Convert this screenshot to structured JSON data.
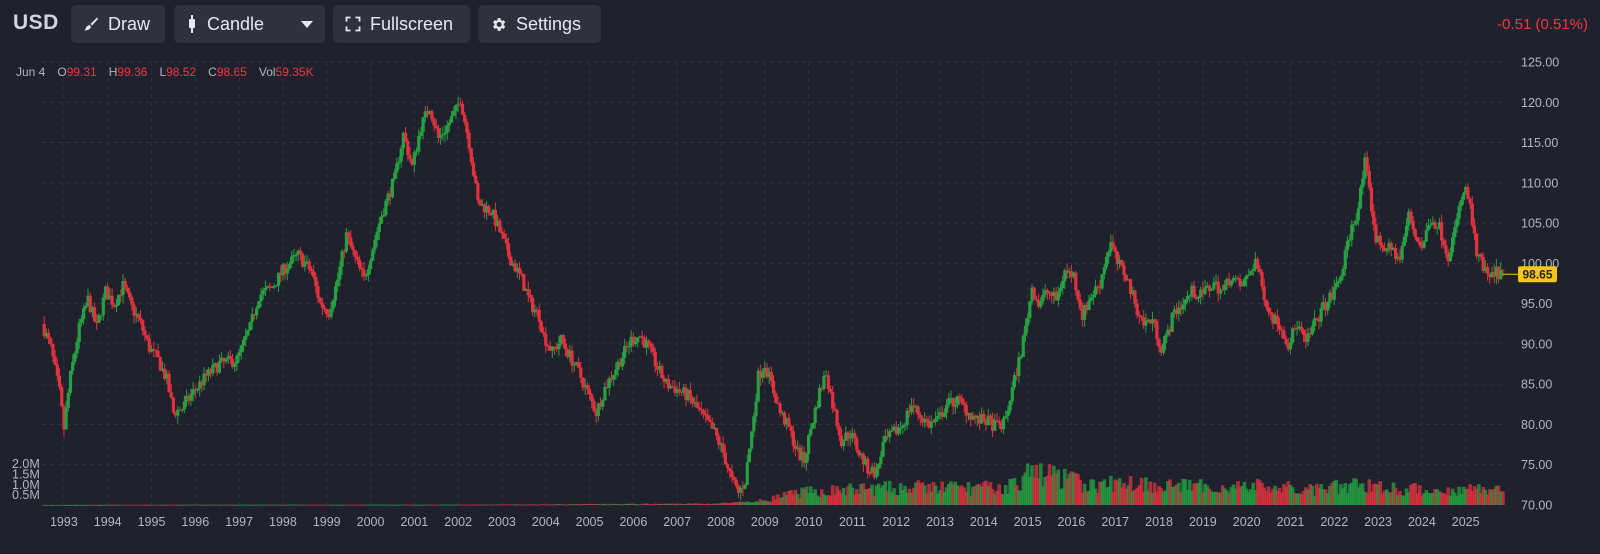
{
  "header": {
    "symbol": "USD",
    "draw_label": "Draw",
    "chart_type_label": "Candle",
    "fullscreen_label": "Fullscreen",
    "settings_label": "Settings",
    "change_text": "-0.51 (0.51%)"
  },
  "legend": {
    "date": "Jun 4",
    "open_key": "O",
    "open": "99.31",
    "high_key": "H",
    "high": "99.36",
    "low_key": "L",
    "low": "98.52",
    "close_key": "C",
    "close": "98.65",
    "vol_key": "Vol",
    "vol": "59.35K"
  },
  "colors": {
    "background": "#1f222c",
    "up": "#26a042",
    "down": "#e0323f",
    "grid": "#2e3240",
    "price_tag": "#f5c518",
    "text": "#b2b5be"
  },
  "chart_data": {
    "type": "candlestick",
    "title": "USD",
    "price_axis": {
      "ticks": [
        70,
        75,
        80,
        85,
        90,
        95,
        100,
        105,
        110,
        115,
        120,
        125
      ],
      "tick_labels": [
        "70.00",
        "75.00",
        "80.00",
        "85.00",
        "90.00",
        "95.00",
        "100.00",
        "105.00",
        "110.00",
        "115.00",
        "120.00",
        "125.00"
      ],
      "range": [
        70,
        125
      ],
      "position": "right"
    },
    "volume_axis": {
      "tick_labels": [
        "0.5M",
        "1.0M",
        "1.5M",
        "2.0M"
      ],
      "ticks": [
        500000,
        1000000,
        1500000,
        2000000
      ],
      "range": [
        0,
        4100000
      ],
      "position": "left"
    },
    "x_axis": {
      "tick_labels": [
        "1993",
        "1994",
        "1995",
        "1996",
        "1997",
        "1998",
        "1999",
        "2000",
        "2001",
        "2002",
        "2003",
        "2004",
        "2005",
        "2006",
        "2007",
        "2008",
        "2009",
        "2010",
        "2011",
        "2012",
        "2013",
        "2014",
        "2015",
        "2016",
        "2017",
        "2018",
        "2019",
        "2020",
        "2021",
        "2022",
        "2023",
        "2024",
        "2025"
      ],
      "range": [
        1992.5,
        2025.92
      ]
    },
    "last_price": 98.65,
    "last_price_label": "98.65",
    "grid": true,
    "price_path": [
      [
        1992.55,
        92.5
      ],
      [
        1992.75,
        89.5
      ],
      [
        1992.95,
        84.0
      ],
      [
        1993.05,
        79.5
      ],
      [
        1993.2,
        86.0
      ],
      [
        1993.4,
        92.0
      ],
      [
        1993.6,
        95.5
      ],
      [
        1993.8,
        92.0
      ],
      [
        1994.0,
        96.5
      ],
      [
        1994.2,
        95.0
      ],
      [
        1994.4,
        97.2
      ],
      [
        1994.6,
        94.5
      ],
      [
        1994.8,
        92.5
      ],
      [
        1995.0,
        89.5
      ],
      [
        1995.2,
        88.0
      ],
      [
        1995.4,
        85.5
      ],
      [
        1995.55,
        81.5
      ],
      [
        1995.75,
        82.0
      ],
      [
        1996.0,
        84.0
      ],
      [
        1996.3,
        86.0
      ],
      [
        1996.6,
        87.5
      ],
      [
        1997.0,
        88.0
      ],
      [
        1997.3,
        92.0
      ],
      [
        1997.5,
        96.0
      ],
      [
        1997.8,
        97.0
      ],
      [
        1998.1,
        99.5
      ],
      [
        1998.4,
        101.0
      ],
      [
        1998.7,
        99.0
      ],
      [
        1998.9,
        95.0
      ],
      [
        1999.1,
        94.0
      ],
      [
        1999.3,
        98.0
      ],
      [
        1999.5,
        103.5
      ],
      [
        1999.7,
        100.5
      ],
      [
        1999.9,
        98.0
      ],
      [
        2000.1,
        102.0
      ],
      [
        2000.3,
        106.0
      ],
      [
        2000.6,
        110.5
      ],
      [
        2000.8,
        116.0
      ],
      [
        2001.0,
        112.0
      ],
      [
        2001.2,
        117.0
      ],
      [
        2001.4,
        119.5
      ],
      [
        2001.6,
        115.5
      ],
      [
        2001.8,
        117.0
      ],
      [
        2002.0,
        119.0
      ],
      [
        2002.1,
        120.5
      ],
      [
        2002.3,
        115.0
      ],
      [
        2002.5,
        107.5
      ],
      [
        2002.8,
        106.5
      ],
      [
        2003.0,
        104.0
      ],
      [
        2003.2,
        101.0
      ],
      [
        2003.5,
        98.0
      ],
      [
        2003.7,
        95.0
      ],
      [
        2003.9,
        93.5
      ],
      [
        2004.0,
        91.0
      ],
      [
        2004.2,
        89.0
      ],
      [
        2004.4,
        90.5
      ],
      [
        2004.6,
        88.5
      ],
      [
        2004.8,
        86.5
      ],
      [
        2005.0,
        84.0
      ],
      [
        2005.2,
        81.5
      ],
      [
        2005.4,
        84.5
      ],
      [
        2005.6,
        86.5
      ],
      [
        2005.8,
        88.5
      ],
      [
        2006.0,
        90.5
      ],
      [
        2006.2,
        91.0
      ],
      [
        2006.4,
        89.5
      ],
      [
        2006.6,
        87.0
      ],
      [
        2006.8,
        85.0
      ],
      [
        2007.0,
        84.5
      ],
      [
        2007.3,
        83.5
      ],
      [
        2007.5,
        82.0
      ],
      [
        2007.7,
        80.5
      ],
      [
        2007.9,
        79.0
      ],
      [
        2008.1,
        76.5
      ],
      [
        2008.3,
        73.0
      ],
      [
        2008.45,
        71.5
      ],
      [
        2008.6,
        73.0
      ],
      [
        2008.75,
        79.0
      ],
      [
        2008.9,
        86.0
      ],
      [
        2009.05,
        87.5
      ],
      [
        2009.2,
        85.0
      ],
      [
        2009.4,
        81.5
      ],
      [
        2009.6,
        79.5
      ],
      [
        2009.8,
        76.5
      ],
      [
        2009.95,
        75.5
      ],
      [
        2010.1,
        79.5
      ],
      [
        2010.3,
        84.0
      ],
      [
        2010.45,
        86.5
      ],
      [
        2010.6,
        82.5
      ],
      [
        2010.8,
        78.0
      ],
      [
        2011.0,
        79.0
      ],
      [
        2011.2,
        76.5
      ],
      [
        2011.4,
        74.5
      ],
      [
        2011.6,
        74.0
      ],
      [
        2011.75,
        77.5
      ],
      [
        2012.0,
        79.0
      ],
      [
        2012.2,
        80.0
      ],
      [
        2012.4,
        82.5
      ],
      [
        2012.6,
        81.0
      ],
      [
        2012.8,
        80.0
      ],
      [
        2013.0,
        80.5
      ],
      [
        2013.2,
        82.5
      ],
      [
        2013.45,
        83.0
      ],
      [
        2013.7,
        81.5
      ],
      [
        2013.9,
        80.5
      ],
      [
        2014.1,
        80.5
      ],
      [
        2014.3,
        79.8
      ],
      [
        2014.5,
        80.0
      ],
      [
        2014.6,
        82.0
      ],
      [
        2014.75,
        85.5
      ],
      [
        2014.9,
        89.0
      ],
      [
        2015.0,
        92.0
      ],
      [
        2015.15,
        97.0
      ],
      [
        2015.3,
        95.0
      ],
      [
        2015.5,
        96.5
      ],
      [
        2015.7,
        95.5
      ],
      [
        2015.9,
        99.0
      ],
      [
        2016.1,
        98.5
      ],
      [
        2016.3,
        93.5
      ],
      [
        2016.5,
        96.0
      ],
      [
        2016.7,
        97.5
      ],
      [
        2016.85,
        101.0
      ],
      [
        2016.95,
        102.5
      ],
      [
        2017.1,
        100.0
      ],
      [
        2017.3,
        98.5
      ],
      [
        2017.5,
        95.0
      ],
      [
        2017.7,
        92.5
      ],
      [
        2017.9,
        93.0
      ],
      [
        2018.1,
        89.5
      ],
      [
        2018.2,
        90.5
      ],
      [
        2018.4,
        94.0
      ],
      [
        2018.6,
        95.0
      ],
      [
        2018.8,
        96.5
      ],
      [
        2019.0,
        96.0
      ],
      [
        2019.3,
        97.5
      ],
      [
        2019.5,
        96.5
      ],
      [
        2019.7,
        98.5
      ],
      [
        2019.9,
        97.0
      ],
      [
        2020.1,
        98.5
      ],
      [
        2020.25,
        100.5
      ],
      [
        2020.4,
        97.0
      ],
      [
        2020.6,
        93.5
      ],
      [
        2020.8,
        92.5
      ],
      [
        2021.0,
        90.0
      ],
      [
        2021.2,
        92.5
      ],
      [
        2021.4,
        90.0
      ],
      [
        2021.6,
        92.5
      ],
      [
        2021.8,
        94.5
      ],
      [
        2022.0,
        96.0
      ],
      [
        2022.2,
        98.5
      ],
      [
        2022.4,
        103.5
      ],
      [
        2022.6,
        107.0
      ],
      [
        2022.75,
        112.5
      ],
      [
        2022.9,
        107.0
      ],
      [
        2023.0,
        103.0
      ],
      [
        2023.2,
        102.0
      ],
      [
        2023.4,
        101.5
      ],
      [
        2023.55,
        100.5
      ],
      [
        2023.75,
        106.0
      ],
      [
        2023.9,
        103.5
      ],
      [
        2024.05,
        102.0
      ],
      [
        2024.25,
        105.5
      ],
      [
        2024.45,
        104.5
      ],
      [
        2024.65,
        101.0
      ],
      [
        2024.8,
        104.0
      ],
      [
        2024.95,
        108.0
      ],
      [
        2025.05,
        109.0
      ],
      [
        2025.15,
        107.0
      ],
      [
        2025.3,
        101.0
      ],
      [
        2025.45,
        99.5
      ],
      [
        2025.6,
        98.0
      ],
      [
        2025.75,
        98.9
      ],
      [
        2025.88,
        98.65
      ]
    ],
    "volume_profile": [
      [
        1992.5,
        0
      ],
      [
        1995.0,
        12000
      ],
      [
        2002.0,
        15000
      ],
      [
        2007.8,
        60000
      ],
      [
        2008.8,
        150000
      ],
      [
        2009.8,
        600000
      ],
      [
        2011.5,
        800000
      ],
      [
        2013.0,
        850000
      ],
      [
        2014.5,
        800000
      ],
      [
        2015.15,
        1600000
      ],
      [
        2015.6,
        1400000
      ],
      [
        2016.5,
        900000
      ],
      [
        2017.3,
        1100000
      ],
      [
        2018.5,
        900000
      ],
      [
        2019.5,
        850000
      ],
      [
        2020.3,
        900000
      ],
      [
        2021.5,
        700000
      ],
      [
        2022.7,
        1000000
      ],
      [
        2023.5,
        750000
      ],
      [
        2024.5,
        700000
      ],
      [
        2025.4,
        800000
      ],
      [
        2025.88,
        700000
      ]
    ]
  }
}
